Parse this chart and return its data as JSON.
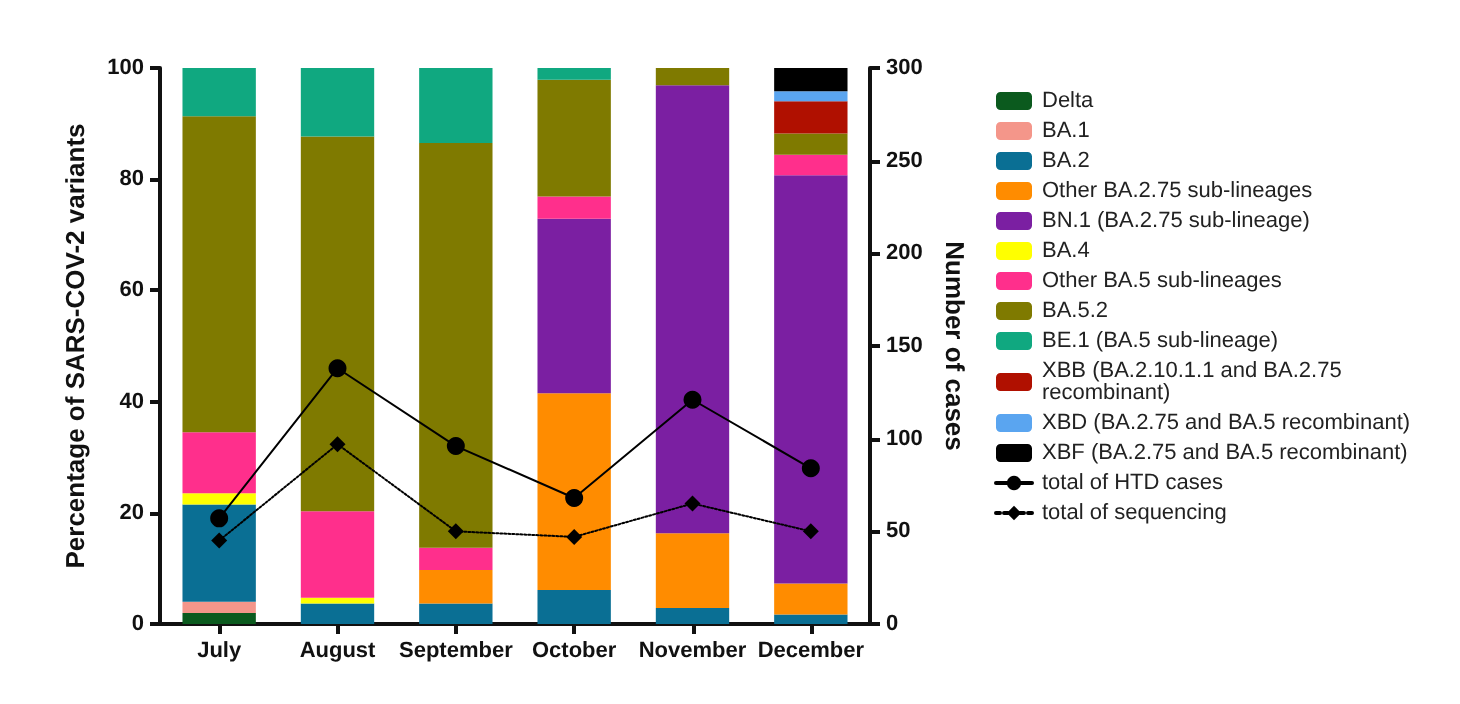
{
  "chart_data": {
    "type": "bar",
    "stacked": true,
    "legend": "right",
    "ylabel": "Percentage of SARS-COV-2 variants",
    "y2label": "Number of cases",
    "ylim": [
      0,
      100
    ],
    "yticks": [
      0,
      20,
      40,
      60,
      80,
      100
    ],
    "y2lim": [
      0,
      300
    ],
    "y2ticks": [
      0,
      50,
      100,
      150,
      200,
      250,
      300
    ],
    "categories": [
      "July",
      "August",
      "September",
      "October",
      "November",
      "December"
    ],
    "series": [
      {
        "name": "Delta",
        "color": "#0b5a1e",
        "values": [
          2,
          0,
          0,
          0,
          0,
          0
        ]
      },
      {
        "name": "BA.1",
        "color": "#f4968a",
        "values": [
          2,
          0,
          0,
          0,
          0,
          0
        ]
      },
      {
        "name": "BA.2",
        "color": "#0a6f94",
        "values": [
          17.5,
          3.7,
          3.7,
          6.1,
          2.9,
          1.7
        ]
      },
      {
        "name": "Other BA.2.75 sub-lineages",
        "color": "#ff8c00",
        "values": [
          0,
          0,
          6,
          35.4,
          13.4,
          5.6
        ]
      },
      {
        "name": "BN.1 (BA.2.75 sub-lineage)",
        "color": "#7b1fa2",
        "values": [
          0,
          0,
          0,
          31.4,
          80.6,
          73.4
        ]
      },
      {
        "name": "BA.4",
        "color": "#ffff00",
        "values": [
          2,
          1,
          0,
          0,
          0,
          0
        ]
      },
      {
        "name": "Other BA.5 sub-lineages",
        "color": "#ff2f8c",
        "values": [
          11,
          15.6,
          4,
          4,
          0,
          3.7
        ]
      },
      {
        "name": "BA.5.2",
        "color": "#7f7a00",
        "values": [
          56.8,
          67.4,
          72.8,
          21,
          3.1,
          3.8
        ]
      },
      {
        "name": "BE.1 (BA.5 sub-lineage)",
        "color": "#10a880",
        "values": [
          8.7,
          12.3,
          13.5,
          2.1,
          0,
          0
        ]
      },
      {
        "name": "XBB (BA.2.10.1.1 and BA.2.75 recombinant)",
        "color": "#b01000",
        "values": [
          0,
          0,
          0,
          0,
          0,
          5.8
        ]
      },
      {
        "name": "XBD (BA.2.75 and BA.5 recombinant)",
        "color": "#5aa5f0",
        "values": [
          0,
          0,
          0,
          0,
          0,
          1.8
        ]
      },
      {
        "name": "XBF (BA.2.75 and BA.5 recombinant)",
        "color": "#000000",
        "values": [
          0,
          0,
          0,
          0,
          0,
          4.2
        ]
      },
      {
        "name": "total of HTD cases",
        "type": "line",
        "axis": "y2",
        "color": "#000000",
        "marker": "circle",
        "line_style": "solid",
        "values": [
          57,
          138,
          96,
          68,
          121,
          84
        ]
      },
      {
        "name": "total of sequencing",
        "type": "line",
        "axis": "y2",
        "color": "#000000",
        "marker": "diamond",
        "line_style": "dotted",
        "values": [
          45,
          97,
          50,
          47,
          65,
          50
        ]
      }
    ]
  }
}
